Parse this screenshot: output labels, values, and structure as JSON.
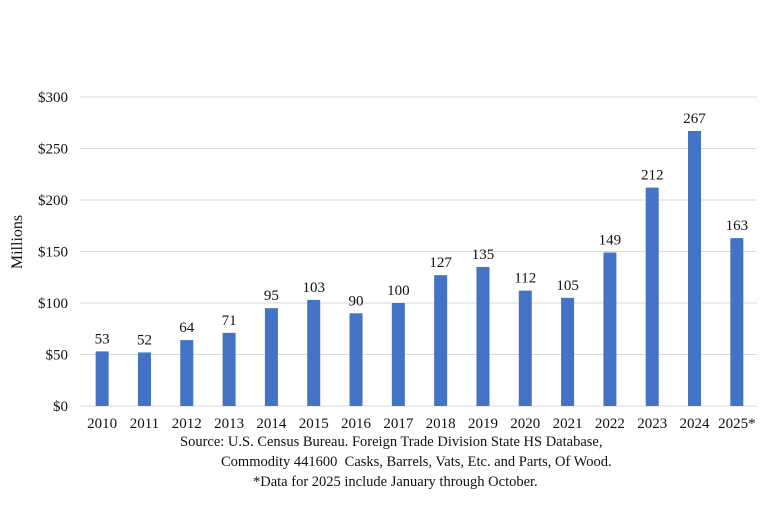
{
  "chart_data": {
    "type": "bar",
    "categories": [
      "2010",
      "2011",
      "2012",
      "2013",
      "2014",
      "2015",
      "2016",
      "2017",
      "2018",
      "2019",
      "2020",
      "2021",
      "2022",
      "2023",
      "2024",
      "2025*"
    ],
    "values": [
      53,
      52,
      64,
      71,
      95,
      103,
      90,
      100,
      127,
      135,
      112,
      105,
      149,
      212,
      267,
      163
    ],
    "data_labels": [
      "53",
      "52",
      "64",
      "71",
      "95",
      "103",
      "90",
      "100",
      "127",
      "135",
      "112",
      "105",
      "149",
      "212",
      "267",
      "163"
    ],
    "ylabel": "Millions",
    "ylim": [
      0,
      300
    ],
    "yticks": [
      0,
      50,
      100,
      150,
      200,
      250,
      300
    ],
    "ytick_labels": [
      "$0",
      "$50",
      "$100",
      "$150",
      "$200",
      "$250",
      "$300"
    ],
    "grid": true,
    "bar_color": "#4472C4",
    "grid_color": "#d9d9d9"
  },
  "notes": {
    "source_line1": "Source: U.S. Census Bureau. Foreign Trade Division State HS Database,",
    "source_line2": "Commodity 441600  Casks, Barrels, Vats, Etc. and Parts, Of Wood.",
    "footnote": "*Data for 2025 include January through October."
  }
}
